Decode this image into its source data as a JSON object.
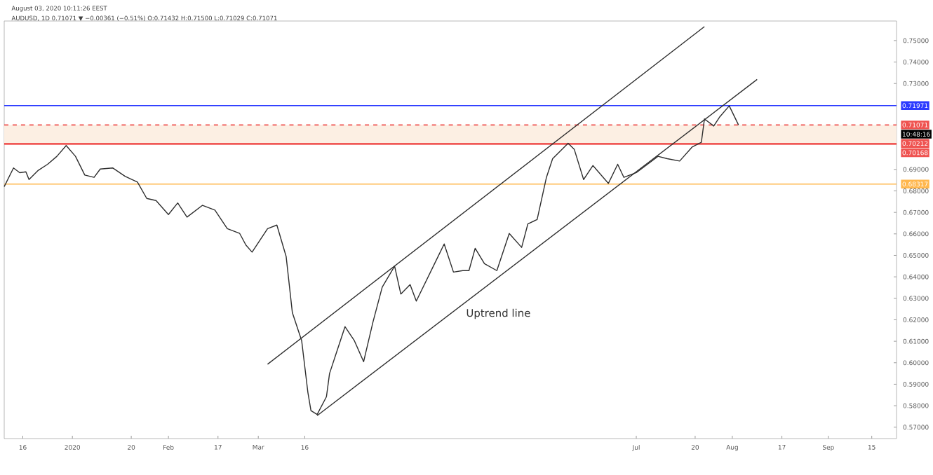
{
  "chart_data": {
    "type": "line",
    "title": "AUDUSD, 1D 0.71071 ▼ −0.00361 (−0.51%) O:0.71432 H:0.71500 L:0.71029 C:0.71071",
    "annotations": [
      "August 03, 2020 10:11:26 EEST",
      "10:48:16",
      "Uptrend line"
    ],
    "xlim": [
      "2019-12-10",
      "2020-09-23"
    ],
    "ylim": [
      0.5647,
      0.7591
    ],
    "xticks": [
      {
        "value": "2019-12-16",
        "label": "16"
      },
      {
        "value": "2020-01-01",
        "label": "2020"
      },
      {
        "value": "2020-01-20",
        "label": "20"
      },
      {
        "value": "2020-02-01",
        "label": "Feb"
      },
      {
        "value": "2020-02-17",
        "label": "17"
      },
      {
        "value": "2020-03-01",
        "label": "Mar"
      },
      {
        "value": "2020-03-16",
        "label": "16"
      },
      {
        "value": "2020-07-01",
        "label": "Jul"
      },
      {
        "value": "2020-07-20",
        "label": "20"
      },
      {
        "value": "2020-08-01",
        "label": "Aug"
      },
      {
        "value": "2020-08-17",
        "label": "17"
      },
      {
        "value": "2020-09-01",
        "label": "Sep"
      },
      {
        "value": "2020-09-15",
        "label": "15"
      }
    ],
    "yticks": [
      {
        "value": 0.57,
        "label": "0.57000"
      },
      {
        "value": 0.58,
        "label": "0.58000"
      },
      {
        "value": 0.59,
        "label": "0.59000"
      },
      {
        "value": 0.6,
        "label": "0.60000"
      },
      {
        "value": 0.61,
        "label": "0.61000"
      },
      {
        "value": 0.62,
        "label": "0.62000"
      },
      {
        "value": 0.63,
        "label": "0.63000"
      },
      {
        "value": 0.64,
        "label": "0.64000"
      },
      {
        "value": 0.65,
        "label": "0.65000"
      },
      {
        "value": 0.66,
        "label": "0.66000"
      },
      {
        "value": 0.67,
        "label": "0.67000"
      },
      {
        "value": 0.68,
        "label": "0.68000"
      },
      {
        "value": 0.69,
        "label": "0.69000"
      },
      {
        "value": 0.73,
        "label": "0.73000"
      },
      {
        "value": 0.74,
        "label": "0.74000"
      },
      {
        "value": 0.75,
        "label": "0.75000"
      }
    ],
    "ref_lines": [
      {
        "axis": "y",
        "value": 0.71971,
        "label": "0.71971",
        "color": "#2b3bff"
      },
      {
        "axis": "y",
        "value": 0.71071,
        "label": "0.71071",
        "color": "#ef5350",
        "line_style": "dashed"
      },
      {
        "axis": "y",
        "value": 0.70212,
        "label": "0.70212",
        "color": "#ef5350"
      },
      {
        "axis": "y",
        "value": 0.70168,
        "label": "0.70168",
        "color": "#ef5350"
      },
      {
        "axis": "y",
        "value": 0.68317,
        "label": "0.68317",
        "color": "#ffb74d"
      }
    ],
    "bands": [
      {
        "axis": "y",
        "from": 0.70212,
        "to": 0.71071,
        "color": "#fcefe3"
      }
    ],
    "series": [
      {
        "color": "#2e2e2e",
        "x": [
          "2019-12-10",
          "2019-12-13",
          "2019-12-15",
          "2019-12-17",
          "2019-12-18",
          "2019-12-21",
          "2019-12-24",
          "2019-12-27",
          "2019-12-30",
          "2020-01-02",
          "2020-01-05",
          "2020-01-08",
          "2020-01-10",
          "2020-01-14",
          "2020-01-18",
          "2020-01-22",
          "2020-01-25",
          "2020-01-28",
          "2020-02-01",
          "2020-02-04",
          "2020-02-07",
          "2020-02-12",
          "2020-02-16",
          "2020-02-20",
          "2020-02-24",
          "2020-02-26",
          "2020-02-28",
          "2020-03-04",
          "2020-03-07",
          "2020-03-10",
          "2020-03-12",
          "2020-03-15",
          "2020-03-17",
          "2020-03-18",
          "2020-03-20",
          "2020-03-23",
          "2020-03-24",
          "2020-03-29",
          "2020-04-01",
          "2020-04-04",
          "2020-04-07",
          "2020-04-10",
          "2020-04-14",
          "2020-04-16",
          "2020-04-19",
          "2020-04-21",
          "2020-04-28",
          "2020-04-30",
          "2020-05-03",
          "2020-05-06",
          "2020-05-08",
          "2020-05-10",
          "2020-05-13",
          "2020-05-17",
          "2020-05-21",
          "2020-05-25",
          "2020-05-27",
          "2020-05-30",
          "2020-06-02",
          "2020-06-04",
          "2020-06-09",
          "2020-06-11",
          "2020-06-14",
          "2020-06-17",
          "2020-06-22",
          "2020-06-25",
          "2020-06-27",
          "2020-07-01",
          "2020-07-05",
          "2020-07-08",
          "2020-07-11",
          "2020-07-15",
          "2020-07-19",
          "2020-07-22",
          "2020-07-23",
          "2020-07-26",
          "2020-07-28",
          "2020-07-31",
          "2020-08-03"
        ],
        "values": [
          0.682,
          0.6907,
          0.6885,
          0.6889,
          0.6853,
          0.6896,
          0.6924,
          0.6961,
          0.7011,
          0.6961,
          0.6874,
          0.6863,
          0.6902,
          0.6907,
          0.6868,
          0.6841,
          0.6765,
          0.6755,
          0.669,
          0.6744,
          0.6678,
          0.6733,
          0.6711,
          0.6624,
          0.6602,
          0.6548,
          0.6515,
          0.6624,
          0.6641,
          0.6494,
          0.6233,
          0.6103,
          0.5863,
          0.5777,
          0.5759,
          0.5842,
          0.595,
          0.6168,
          0.6103,
          0.6005,
          0.6189,
          0.6352,
          0.645,
          0.632,
          0.6364,
          0.6287,
          0.6494,
          0.6553,
          0.6422,
          0.6429,
          0.6429,
          0.6533,
          0.6461,
          0.6429,
          0.6602,
          0.6537,
          0.6646,
          0.6667,
          0.6863,
          0.695,
          0.7022,
          0.6993,
          0.6853,
          0.6918,
          0.6835,
          0.6924,
          0.6863,
          0.6885,
          0.6928,
          0.6961,
          0.695,
          0.6939,
          0.7004,
          0.7026,
          0.7135,
          0.7102,
          0.7146,
          0.7196,
          0.7107
        ]
      },
      {
        "color": "#2e2e2e",
        "x": [
          "2020-03-04",
          "2020-07-23"
        ],
        "values": [
          0.5993,
          0.7565
        ]
      },
      {
        "color": "#2e2e2e",
        "x": [
          "2020-03-20",
          "2020-08-09"
        ],
        "values": [
          0.5754,
          0.7319
        ]
      }
    ]
  }
}
